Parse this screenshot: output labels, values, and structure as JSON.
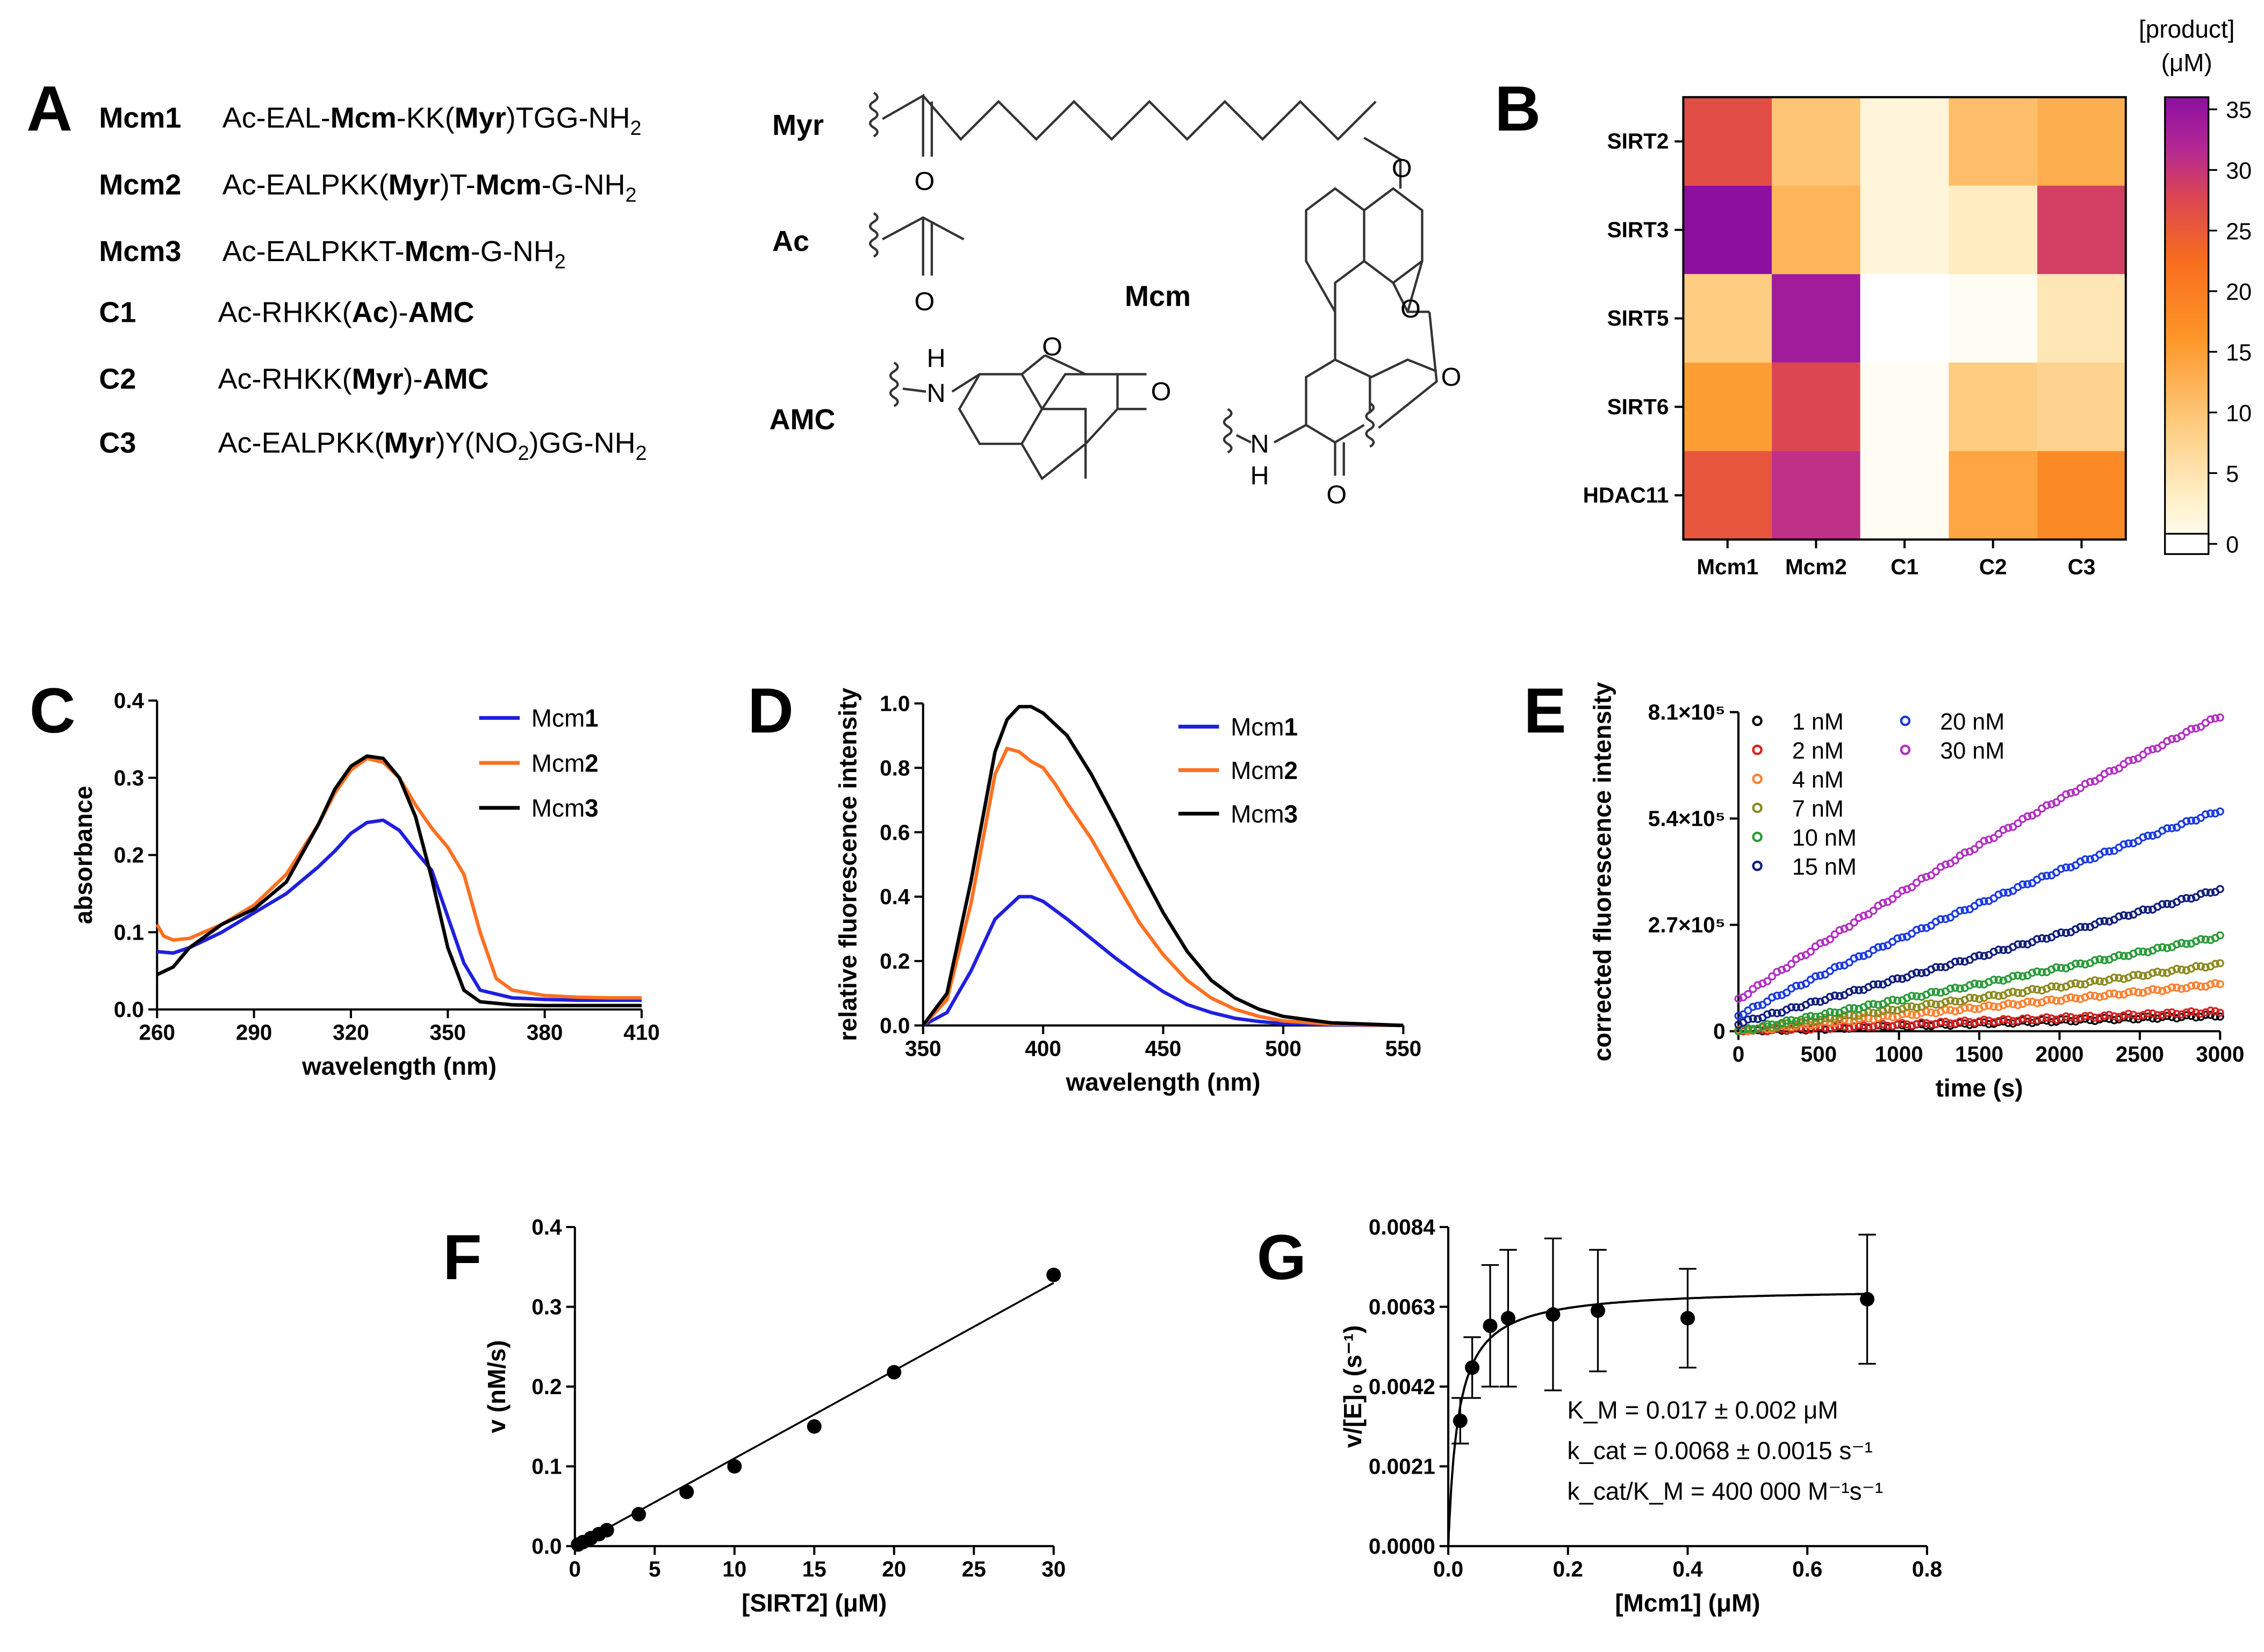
{
  "panel_labels": [
    "A",
    "B",
    "C",
    "D",
    "E",
    "F",
    "G"
  ],
  "panelA": {
    "peptides": [
      {
        "name": "Mcm1",
        "seq": [
          [
            "Ac-EAL-",
            false
          ],
          [
            "Mcm",
            true
          ],
          [
            "-KK(",
            false
          ],
          [
            "Myr",
            true
          ],
          [
            ")TGG-NH",
            false
          ]
        ],
        "sub": "2"
      },
      {
        "name": "Mcm2",
        "seq": [
          [
            "Ac-EALPKK(",
            false
          ],
          [
            "Myr",
            true
          ],
          [
            ")T-",
            false
          ],
          [
            "Mcm",
            true
          ],
          [
            "-G-NH",
            false
          ]
        ],
        "sub": "2"
      },
      {
        "name": "Mcm3",
        "seq": [
          [
            "Ac-EALPKKT-",
            false
          ],
          [
            "Mcm",
            true
          ],
          [
            "-G-NH",
            false
          ]
        ],
        "sub": "2"
      },
      {
        "name": "C1",
        "seq": [
          [
            "Ac-RHKK(",
            false
          ],
          [
            "Ac",
            true
          ],
          [
            ")-",
            false
          ],
          [
            "AMC",
            true
          ]
        ],
        "sub": ""
      },
      {
        "name": "C2",
        "seq": [
          [
            "Ac-RHKK(",
            false
          ],
          [
            "Myr",
            true
          ],
          [
            ")-",
            false
          ],
          [
            "AMC",
            true
          ]
        ],
        "sub": ""
      },
      {
        "name": "C3",
        "seq": [
          [
            "Ac-EALPKK(",
            false
          ],
          [
            "Myr",
            true
          ],
          [
            ")Y(NO",
            false
          ],
          [
            "2",
            false
          ],
          [
            ")GG-NH",
            false
          ]
        ],
        "sub": "2"
      }
    ],
    "struct_labels": {
      "myr": "Myr",
      "ac": "Ac",
      "mcm": "Mcm",
      "amc": "AMC"
    },
    "atoms": {
      "O": "O",
      "H": "H",
      "N": "N"
    }
  },
  "chart_data": [
    {
      "panel": "B",
      "type": "heatmap",
      "rows": [
        "SIRT2",
        "SIRT3",
        "SIRT5",
        "SIRT6",
        "HDAC11"
      ],
      "cols": [
        "Mcm1",
        "Mcm2",
        "C1",
        "C2",
        "C3"
      ],
      "values": [
        [
          27,
          11,
          3,
          12,
          14
        ],
        [
          36,
          13,
          3,
          5,
          29
        ],
        [
          10,
          34,
          0,
          1,
          6
        ],
        [
          16,
          28,
          1,
          10,
          9
        ],
        [
          26,
          31,
          1,
          15,
          19
        ]
      ],
      "colorbar": {
        "title1": "[product]",
        "title2": "(μM)",
        "ticks": [
          0,
          5,
          10,
          15,
          20,
          25,
          30,
          35
        ],
        "range": [
          0,
          36
        ]
      }
    },
    {
      "panel": "C",
      "type": "line",
      "xlabel": "wavelength (nm)",
      "ylabel": "absorbance",
      "xlim": [
        260,
        410
      ],
      "ylim": [
        0,
        0.4
      ],
      "xticks": [
        260,
        290,
        320,
        350,
        380,
        410
      ],
      "yticks": [
        0.0,
        0.1,
        0.2,
        0.3,
        0.4
      ],
      "ytick_labels": [
        "0.0",
        "0.1",
        "0.2",
        "0.3",
        "0.4"
      ],
      "series": [
        {
          "name": "Mcm",
          "bold": "1",
          "color": "#1f1fe0",
          "x": [
            260,
            265,
            270,
            280,
            290,
            300,
            310,
            315,
            320,
            325,
            330,
            335,
            340,
            345,
            350,
            355,
            360,
            370,
            380,
            390,
            400,
            410
          ],
          "y": [
            0.075,
            0.073,
            0.08,
            0.1,
            0.125,
            0.15,
            0.185,
            0.205,
            0.228,
            0.242,
            0.245,
            0.232,
            0.205,
            0.18,
            0.12,
            0.06,
            0.025,
            0.015,
            0.013,
            0.012,
            0.012,
            0.012
          ]
        },
        {
          "name": "Mcm",
          "bold": "2",
          "color": "#ff7020",
          "x": [
            260,
            262,
            265,
            270,
            280,
            290,
            300,
            310,
            315,
            320,
            325,
            330,
            335,
            340,
            345,
            350,
            355,
            360,
            365,
            370,
            380,
            390,
            400,
            410
          ],
          "y": [
            0.11,
            0.095,
            0.09,
            0.092,
            0.11,
            0.135,
            0.175,
            0.24,
            0.28,
            0.31,
            0.325,
            0.32,
            0.3,
            0.265,
            0.235,
            0.21,
            0.175,
            0.1,
            0.04,
            0.025,
            0.018,
            0.016,
            0.015,
            0.015
          ]
        },
        {
          "name": "Mcm",
          "bold": "3",
          "color": "#000000",
          "x": [
            260,
            265,
            270,
            280,
            290,
            300,
            310,
            315,
            320,
            325,
            330,
            335,
            340,
            345,
            350,
            355,
            360,
            370,
            380,
            390,
            400,
            410
          ],
          "y": [
            0.045,
            0.055,
            0.08,
            0.11,
            0.13,
            0.165,
            0.24,
            0.285,
            0.315,
            0.328,
            0.325,
            0.3,
            0.25,
            0.17,
            0.08,
            0.025,
            0.01,
            0.006,
            0.005,
            0.005,
            0.005,
            0.005
          ]
        }
      ]
    },
    {
      "panel": "D",
      "type": "line",
      "xlabel": "wavelength (nm)",
      "ylabel": "relative fluorescence intensity",
      "xlim": [
        350,
        550
      ],
      "ylim": [
        0,
        1.0
      ],
      "xticks": [
        350,
        400,
        450,
        500,
        550
      ],
      "yticks": [
        0.0,
        0.2,
        0.4,
        0.6,
        0.8,
        1.0
      ],
      "ytick_labels": [
        "0.0",
        "0.2",
        "0.4",
        "0.6",
        "0.8",
        "1.0"
      ],
      "series": [
        {
          "name": "Mcm",
          "bold": "1",
          "color": "#1f1fe0",
          "x": [
            350,
            360,
            370,
            380,
            390,
            395,
            400,
            410,
            420,
            430,
            440,
            450,
            460,
            470,
            480,
            490,
            500,
            520,
            550
          ],
          "y": [
            0.0,
            0.04,
            0.17,
            0.33,
            0.4,
            0.4,
            0.385,
            0.33,
            0.27,
            0.21,
            0.155,
            0.105,
            0.065,
            0.04,
            0.022,
            0.012,
            0.006,
            0.002,
            0.0
          ]
        },
        {
          "name": "Mcm",
          "bold": "2",
          "color": "#ff7020",
          "x": [
            350,
            360,
            370,
            380,
            385,
            390,
            395,
            400,
            405,
            410,
            420,
            430,
            440,
            450,
            460,
            470,
            480,
            490,
            500,
            520,
            550
          ],
          "y": [
            0.0,
            0.08,
            0.38,
            0.78,
            0.86,
            0.85,
            0.82,
            0.8,
            0.75,
            0.69,
            0.58,
            0.45,
            0.32,
            0.22,
            0.14,
            0.085,
            0.05,
            0.028,
            0.014,
            0.004,
            0.0
          ]
        },
        {
          "name": "Mcm",
          "bold": "3",
          "color": "#000000",
          "x": [
            350,
            360,
            370,
            380,
            385,
            390,
            395,
            400,
            410,
            420,
            430,
            440,
            450,
            460,
            470,
            480,
            490,
            500,
            520,
            550
          ],
          "y": [
            0.0,
            0.1,
            0.45,
            0.85,
            0.95,
            0.99,
            0.99,
            0.97,
            0.9,
            0.78,
            0.64,
            0.49,
            0.35,
            0.23,
            0.14,
            0.085,
            0.05,
            0.028,
            0.008,
            0.0
          ]
        }
      ]
    },
    {
      "panel": "E",
      "type": "scatter",
      "xlabel": "time (s)",
      "ylabel": "corrected fluorescence intensity",
      "xlim": [
        0,
        3000
      ],
      "ylim": [
        0,
        810000
      ],
      "xticks": [
        0,
        500,
        1000,
        1500,
        2000,
        2500,
        3000
      ],
      "yticks": [
        0,
        270000,
        540000,
        810000
      ],
      "ytick_labels": [
        "0",
        "2.7×10⁵",
        "5.4×10⁵",
        "8.1×10⁵"
      ],
      "series": [
        {
          "name": "1 nM",
          "color": "#000000",
          "y0": 0,
          "y1": 40000
        },
        {
          "name": "2 nM",
          "color": "#d62020",
          "y0": 0,
          "y1": 50000
        },
        {
          "name": "4 nM",
          "color": "#ff8030",
          "y0": 0,
          "y1": 120000
        },
        {
          "name": "7 nM",
          "color": "#8a8a20",
          "y0": 0,
          "y1": 170000
        },
        {
          "name": "10 nM",
          "color": "#2a9a3a",
          "y0": 0,
          "y1": 240000
        },
        {
          "name": "15 nM",
          "color": "#101e7a",
          "y0": 20000,
          "y1": 360000
        },
        {
          "name": "20 nM",
          "color": "#1a3ae0",
          "y0": 40000,
          "y1": 560000
        },
        {
          "name": "30 nM",
          "color": "#b030c0",
          "y0": 80000,
          "y1": 800000
        }
      ]
    },
    {
      "panel": "F",
      "type": "scatter",
      "xlabel": "[SIRT2] (μM)",
      "ylabel": "v (nM/s)",
      "xlim": [
        0,
        30
      ],
      "ylim": [
        0,
        0.4
      ],
      "xticks": [
        0,
        5,
        10,
        15,
        20,
        25,
        30
      ],
      "yticks": [
        0.0,
        0.1,
        0.2,
        0.3,
        0.4
      ],
      "ytick_labels": [
        "0.0",
        "0.1",
        "0.2",
        "0.3",
        "0.4"
      ],
      "points": [
        [
          0.2,
          0.002
        ],
        [
          0.5,
          0.005
        ],
        [
          1.0,
          0.01
        ],
        [
          1.5,
          0.015
        ],
        [
          2.0,
          0.02
        ],
        [
          4,
          0.04
        ],
        [
          7,
          0.068
        ],
        [
          10,
          0.1
        ],
        [
          15,
          0.15
        ],
        [
          20,
          0.218
        ],
        [
          30,
          0.34
        ]
      ],
      "fit": [
        [
          0,
          0.0
        ],
        [
          30,
          0.33
        ]
      ]
    },
    {
      "panel": "G",
      "type": "scatter",
      "xlabel": "[Mcm1] (μM)",
      "ylabel": "v/[E]₀ (s⁻¹)",
      "xlim": [
        0,
        0.8
      ],
      "ylim": [
        0,
        0.0084
      ],
      "xticks": [
        0.0,
        0.2,
        0.4,
        0.6,
        0.8
      ],
      "yticks": [
        0.0,
        0.0021,
        0.0042,
        0.0063,
        0.0084
      ],
      "xtick_labels": [
        "0.0",
        "0.2",
        "0.4",
        "0.6",
        "0.8"
      ],
      "ytick_labels": [
        "0.0000",
        "0.0021",
        "0.0042",
        "0.0063",
        "0.0084"
      ],
      "points": [
        [
          0.02,
          0.0033,
          0.0006
        ],
        [
          0.04,
          0.0047,
          0.0008
        ],
        [
          0.07,
          0.0058,
          0.0016
        ],
        [
          0.1,
          0.006,
          0.0018
        ],
        [
          0.175,
          0.0061,
          0.002
        ],
        [
          0.25,
          0.0062,
          0.0016
        ],
        [
          0.4,
          0.006,
          0.0013
        ],
        [
          0.7,
          0.0065,
          0.0017
        ]
      ],
      "fit": {
        "vmax": 0.0068,
        "km": 0.017
      },
      "annotation": [
        "K_M = 0.017 ± 0.002 μM",
        "k_cat = 0.0068 ± 0.0015 s⁻¹",
        "k_cat/K_M = 400 000 M⁻¹s⁻¹"
      ]
    }
  ]
}
